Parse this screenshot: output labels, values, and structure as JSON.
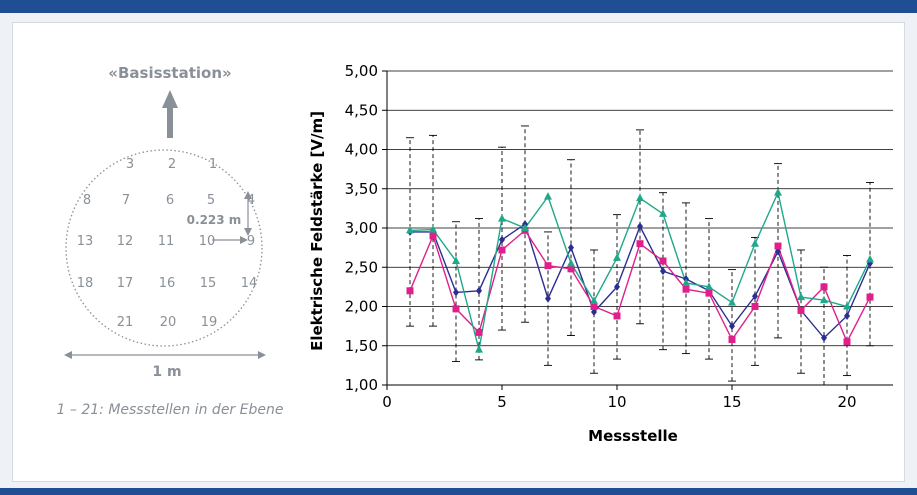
{
  "colors": {
    "frame": "#1f4e94",
    "navy": "#2b2f8f",
    "magenta": "#e0208a",
    "teal": "#1fa88a",
    "gray": "#8a9097"
  },
  "diagram": {
    "title": "«Basisstation»",
    "caption": "1 – 21: Messstellen in der Ebene",
    "scale_label": "1 m",
    "distance_label": "0.223 m",
    "points": [
      "1",
      "2",
      "3",
      "4",
      "5",
      "6",
      "7",
      "8",
      "9",
      "10",
      "11",
      "12",
      "13",
      "14",
      "15",
      "16",
      "17",
      "18",
      "19",
      "20",
      "21"
    ]
  },
  "chart_data": {
    "type": "line",
    "xlabel": "Messstelle",
    "ylabel": "Elektrische Feldstärke [V/m]",
    "xlim": [
      0,
      22
    ],
    "ylim": [
      1.0,
      5.0
    ],
    "x_ticks": [
      0,
      5,
      10,
      15,
      20
    ],
    "y_ticks": [
      "1,00",
      "1,50",
      "2,00",
      "2,50",
      "3,00",
      "3,50",
      "4,00",
      "4,50",
      "5,00"
    ],
    "grid": "horizontal",
    "x": [
      1,
      2,
      3,
      4,
      5,
      6,
      7,
      8,
      9,
      10,
      11,
      12,
      13,
      14,
      15,
      16,
      17,
      18,
      19,
      20,
      21
    ],
    "series": [
      {
        "color": "#2b2f8f",
        "marker": "diamond",
        "values": [
          2.95,
          2.95,
          2.18,
          2.2,
          2.85,
          3.05,
          2.1,
          2.75,
          1.93,
          2.25,
          3.02,
          2.45,
          2.35,
          2.2,
          1.75,
          2.13,
          2.7,
          1.95,
          1.6,
          1.88,
          2.55
        ]
      },
      {
        "color": "#e0208a",
        "marker": "square",
        "values": [
          2.2,
          2.9,
          1.97,
          1.67,
          2.72,
          2.97,
          2.52,
          2.48,
          2.0,
          1.88,
          2.8,
          2.58,
          2.22,
          2.17,
          1.58,
          2.0,
          2.77,
          1.95,
          2.25,
          1.55,
          2.12
        ]
      },
      {
        "color": "#1fa88a",
        "marker": "triangle",
        "values": [
          2.97,
          2.98,
          2.58,
          1.45,
          3.12,
          3.0,
          3.4,
          2.55,
          2.07,
          2.62,
          3.38,
          3.18,
          2.3,
          2.25,
          2.05,
          2.8,
          3.45,
          2.12,
          2.08,
          2.0,
          2.6
        ]
      }
    ],
    "error_bars": [
      [
        1.75,
        4.15
      ],
      [
        1.75,
        4.18
      ],
      [
        1.3,
        3.08
      ],
      [
        1.32,
        3.12
      ],
      [
        1.7,
        4.03
      ],
      [
        1.8,
        4.3
      ],
      [
        1.25,
        2.95
      ],
      [
        1.63,
        3.87
      ],
      [
        1.15,
        2.72
      ],
      [
        1.33,
        3.17
      ],
      [
        1.78,
        4.25
      ],
      [
        1.45,
        3.45
      ],
      [
        1.4,
        3.32
      ],
      [
        1.33,
        3.12
      ],
      [
        1.05,
        2.47
      ],
      [
        1.25,
        2.88
      ],
      [
        1.6,
        3.82
      ],
      [
        1.15,
        2.72
      ],
      [
        1.0,
        2.5
      ],
      [
        1.12,
        2.65
      ],
      [
        1.5,
        3.58
      ]
    ]
  }
}
